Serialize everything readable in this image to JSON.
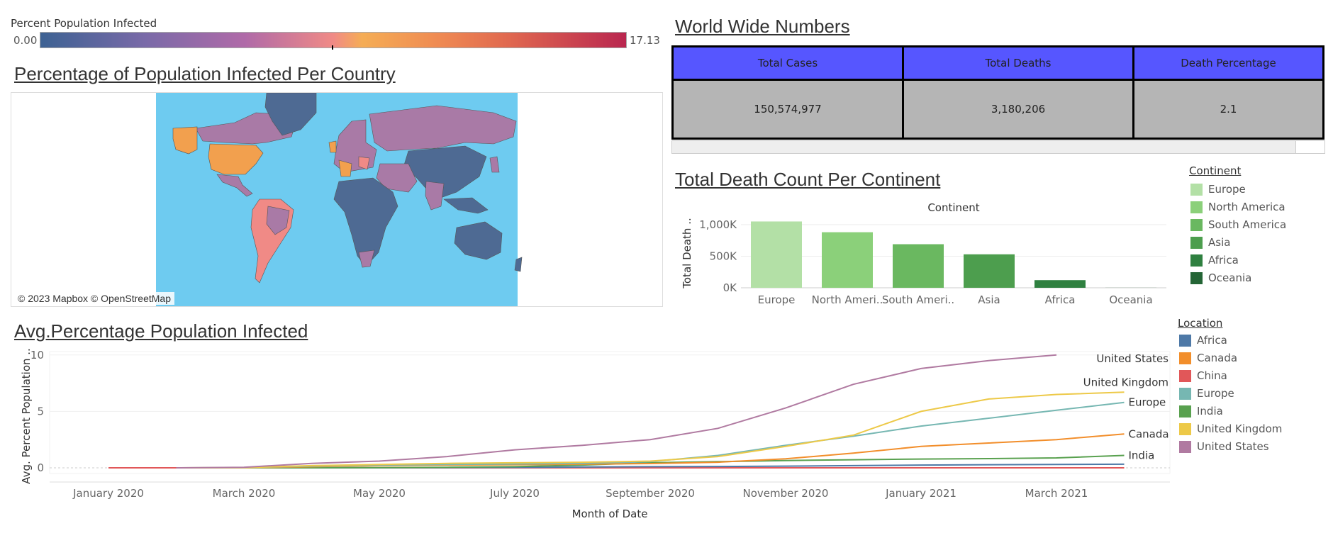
{
  "colorbar": {
    "title": "Percent Population Infected",
    "min_label": "0.00",
    "max_label": "17.13"
  },
  "map": {
    "title": "Percentage of Population Infected Per Country",
    "attribution": "© 2023 Mapbox © OpenStreetMap",
    "colors": {
      "ocean": "#6ecbf0",
      "low": "#4e6a93",
      "mid": "#a97aa6",
      "high": "#f2a04e",
      "pink": "#f08a86"
    }
  },
  "kpi": {
    "title": "World Wide Numbers",
    "headers": [
      "Total Cases",
      "Total Deaths",
      "Death Percentage"
    ],
    "values": [
      "150,574,977",
      "3,180,206",
      "2.1"
    ],
    "header_color": "#5656ff",
    "cell_color": "#b5b5b5"
  },
  "bar_legend": {
    "title": "Continent",
    "items": [
      {
        "label": "Europe",
        "color": "#b3e0a6"
      },
      {
        "label": "North America",
        "color": "#8bd07a"
      },
      {
        "label": "South America",
        "color": "#6ab860"
      },
      {
        "label": "Asia",
        "color": "#4d9e4e"
      },
      {
        "label": "Africa",
        "color": "#2f8040"
      },
      {
        "label": "Oceania",
        "color": "#246536"
      }
    ]
  },
  "line_legend": {
    "title": "Location",
    "items": [
      {
        "label": "Africa",
        "color": "#4e79a7"
      },
      {
        "label": "Canada",
        "color": "#f28e2b"
      },
      {
        "label": "China",
        "color": "#e15759"
      },
      {
        "label": "Europe",
        "color": "#76b7b2"
      },
      {
        "label": "India",
        "color": "#59a14f"
      },
      {
        "label": "United Kingdom",
        "color": "#edc948"
      },
      {
        "label": "United States",
        "color": "#b07aa1"
      }
    ]
  },
  "chart_data": [
    {
      "type": "bar",
      "title": "Total Death Count Per Continent",
      "header": "Continent",
      "xlabel": "",
      "ylabel": "Total Death ..",
      "categories": [
        "Europe",
        "North Ameri..",
        "South Ameri..",
        "Asia",
        "Africa",
        "Oceania"
      ],
      "values": [
        1050000,
        880000,
        690000,
        530000,
        121000,
        1000
      ],
      "ylim": [
        0,
        1100000
      ],
      "yticks": [
        {
          "value": 0,
          "label": "0K"
        },
        {
          "value": 500000,
          "label": "500K"
        },
        {
          "value": 1000000,
          "label": "1,000K"
        }
      ],
      "colors": [
        "#b3e0a6",
        "#8bd07a",
        "#6ab860",
        "#4d9e4e",
        "#2f8040",
        "#246536"
      ]
    },
    {
      "type": "line",
      "title": "Avg.Percentage Population Infected",
      "xlabel": "Month of Date",
      "ylabel": "Avg. Percent Population ..",
      "x": [
        "January 2020",
        "February 2020",
        "March 2020",
        "April 2020",
        "May 2020",
        "June 2020",
        "July 2020",
        "August 2020",
        "September 2020",
        "October 2020",
        "November 2020",
        "December 2020",
        "January 2021",
        "February 2021",
        "March 2021",
        "April 2021"
      ],
      "xticks": [
        "January 2020",
        "March 2020",
        "May 2020",
        "July 2020",
        "September 2020",
        "November 2020",
        "January 2021",
        "March 2021"
      ],
      "ylim": [
        -0.5,
        10.3
      ],
      "yticks": [
        0,
        5,
        10
      ],
      "series": [
        {
          "name": "United States",
          "values": [
            null,
            0.0,
            0.05,
            0.4,
            0.6,
            1.0,
            1.6,
            2.0,
            2.5,
            3.5,
            5.3,
            7.4,
            8.8,
            9.5,
            10.0,
            null
          ]
        },
        {
          "name": "United Kingdom",
          "values": [
            null,
            0.0,
            0.02,
            0.2,
            0.3,
            0.4,
            0.45,
            0.5,
            0.6,
            1.0,
            1.9,
            2.9,
            5.0,
            6.1,
            6.5,
            6.7
          ]
        },
        {
          "name": "Europe",
          "values": [
            null,
            0.0,
            0.02,
            0.15,
            0.25,
            0.3,
            0.35,
            0.4,
            0.55,
            1.1,
            2.0,
            2.8,
            3.7,
            4.4,
            5.1,
            5.8
          ]
        },
        {
          "name": "Canada",
          "values": [
            null,
            0.0,
            0.01,
            0.1,
            0.2,
            0.25,
            0.28,
            0.32,
            0.38,
            0.5,
            0.8,
            1.3,
            1.9,
            2.2,
            2.5,
            3.0
          ]
        },
        {
          "name": "India",
          "values": [
            null,
            0.0,
            0.0,
            0.01,
            0.02,
            0.05,
            0.1,
            0.25,
            0.45,
            0.55,
            0.65,
            0.72,
            0.78,
            0.82,
            0.88,
            1.1
          ]
        },
        {
          "name": "Africa",
          "values": [
            null,
            0.0,
            0.0,
            0.0,
            0.01,
            0.02,
            0.04,
            0.07,
            0.1,
            0.12,
            0.15,
            0.2,
            0.25,
            0.28,
            0.3,
            0.32
          ]
        },
        {
          "name": "China",
          "values": [
            0.0,
            0.0,
            0.0,
            0.0,
            0.0,
            0.0,
            0.0,
            0.0,
            0.0,
            0.0,
            0.0,
            0.0,
            0.0,
            0.0,
            0.0,
            0.0
          ]
        }
      ],
      "end_labels": [
        "United States",
        "United Kingdom",
        "Europe",
        "Canada",
        "India"
      ]
    }
  ]
}
